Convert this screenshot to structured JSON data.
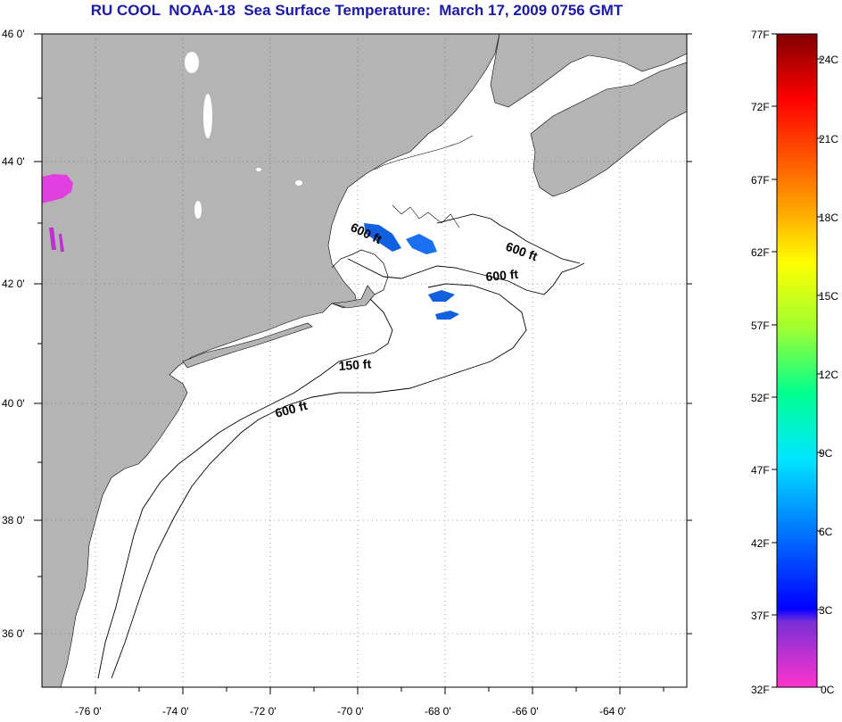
{
  "title": "RU COOL  NOAA-18  Sea Surface Temperature:  March 17, 2009 0756 GMT",
  "map": {
    "lat_labels": [
      "46 0'",
      "44 0'",
      "42 0'",
      "40 0'",
      "38 0'",
      "36 0'"
    ],
    "lon_labels": [
      "-76 0'",
      "-74 0'",
      "-72 0'",
      "-70 0'",
      "-68 0'",
      "-66 0'",
      "-64 0'"
    ],
    "land_color": "#b4b4b4",
    "ocean_color": "#ffffff",
    "contour_labels": [
      "600 ft",
      "600 ft",
      "600 ft",
      "150 ft",
      "600 ft"
    ]
  },
  "colorbar": {
    "f_labels": [
      "77F",
      "72F",
      "67F",
      "62F",
      "57F",
      "52F",
      "47F",
      "42F",
      "37F",
      "32F"
    ],
    "c_labels": [
      "24C",
      "21C",
      "18C",
      "15C",
      "12C",
      "9C",
      "6C",
      "3C",
      "0C"
    ]
  }
}
